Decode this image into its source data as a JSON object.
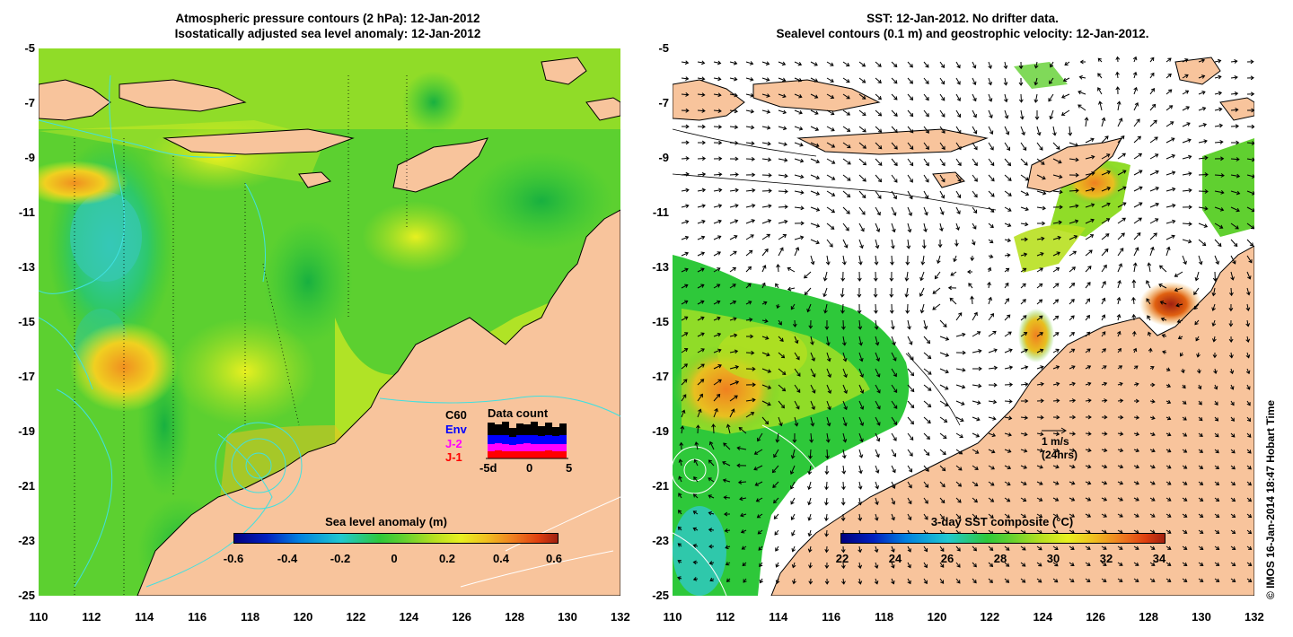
{
  "left_panel": {
    "title_line1": "Atmospheric pressure contours (2 hPa): 12-Jan-2012",
    "title_line2": "Isostatically adjusted sea level anomaly: 12-Jan-2012",
    "colorbar": {
      "title": "Sea level anomaly (m)",
      "ticks": [
        "-0.6",
        "-0.4",
        "-0.2",
        "0",
        "0.2",
        "0.4",
        "0.6"
      ]
    },
    "legend": {
      "c60": "C60",
      "env": "Env",
      "j2": "J-2",
      "j1": "J-1",
      "data_count_label": "Data count",
      "axis_ticks": [
        "-5d",
        "0",
        "5"
      ],
      "colors": {
        "c60": "#000000",
        "env": "#0000ff",
        "j2": "#ff00ff",
        "j1": "#ff0000"
      }
    }
  },
  "right_panel": {
    "title_line1": "SST: 12-Jan-2012. No drifter data.",
    "title_line2": "Sealevel contours (0.1 m) and geostrophic velocity: 12-Jan-2012.",
    "colorbar": {
      "title": "3-day SST composite (°C)",
      "ticks": [
        "22",
        "24",
        "26",
        "28",
        "30",
        "32",
        "34"
      ]
    },
    "velocity_key": {
      "speed": "1 m/s",
      "duration": "(24hrs)"
    }
  },
  "axes": {
    "y_ticks": [
      "-5",
      "-7",
      "-9",
      "-11",
      "-13",
      "-15",
      "-17",
      "-19",
      "-21",
      "-23",
      "-25"
    ],
    "x_ticks": [
      "110",
      "112",
      "114",
      "116",
      "118",
      "120",
      "122",
      "124",
      "126",
      "128",
      "130",
      "132"
    ]
  },
  "credit": "© IMOS 16-Jan-2014 18:47 Hobart Time",
  "colors": {
    "land": "#f8c49c",
    "contour_cyan": "#40e0e0",
    "ocean_green": "#2ec82e",
    "ocean_yellow": "#e8f020"
  }
}
